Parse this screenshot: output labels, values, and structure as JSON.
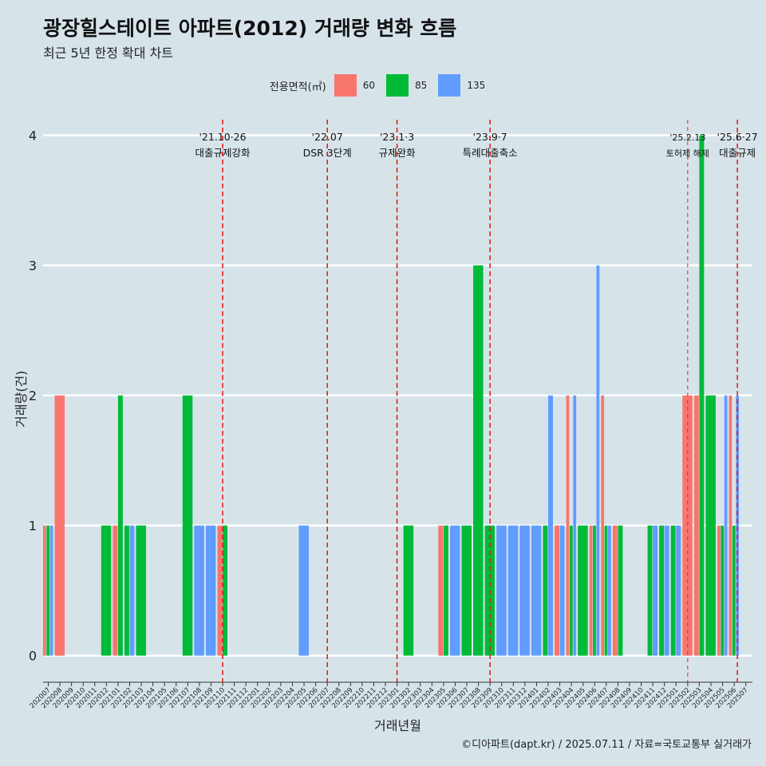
{
  "title": "광장힐스테이트 아파트(2012) 거래량 변화 흐름",
  "subtitle": "최근 5년 한정 확대 차트",
  "caption": "©디아파트(dapt.kr) / 2025.07.11 / 자료=국토교통부 실거래가",
  "legend": {
    "title": "전용면적(㎡)",
    "items": [
      {
        "label": "60",
        "color": "#F8766D"
      },
      {
        "label": "85",
        "color": "#00BA38"
      },
      {
        "label": "135",
        "color": "#619CFF"
      }
    ]
  },
  "chart_data": {
    "type": "bar",
    "xlabel": "거래년월",
    "ylabel": "거래량(건)",
    "ylim": [
      -0.18,
      4.12
    ],
    "yticks": [
      0,
      1,
      2,
      3,
      4
    ],
    "grid": "horizontal",
    "legend_position": "top",
    "x_range": [
      "202007",
      "202507"
    ],
    "categories": [
      "202007",
      "202008",
      "202009",
      "202010",
      "202011",
      "202012",
      "202101",
      "202102",
      "202103",
      "202104",
      "202105",
      "202106",
      "202107",
      "202108",
      "202109",
      "202110",
      "202111",
      "202112",
      "202201",
      "202202",
      "202203",
      "202204",
      "202205",
      "202206",
      "202207",
      "202208",
      "202209",
      "202210",
      "202211",
      "202212",
      "202301",
      "202302",
      "202303",
      "202304",
      "202305",
      "202306",
      "202307",
      "202308",
      "202309",
      "202310",
      "202311",
      "202312",
      "202401",
      "202402",
      "202403",
      "202404",
      "202405",
      "202406",
      "202407",
      "202408",
      "202409",
      "202410",
      "202411",
      "202412",
      "202501",
      "202502",
      "202503",
      "202504",
      "202505",
      "202506",
      "202507"
    ],
    "series": [
      {
        "name": "60",
        "color": "#F8766D",
        "points": [
          {
            "x": "202007",
            "y": 1
          },
          {
            "x": "202008",
            "y": 2
          },
          {
            "x": "202101",
            "y": 1
          },
          {
            "x": "202110",
            "y": 1
          },
          {
            "x": "202305",
            "y": 1
          },
          {
            "x": "202403",
            "y": 1
          },
          {
            "x": "202404",
            "y": 2
          },
          {
            "x": "202406",
            "y": 1
          },
          {
            "x": "202407",
            "y": 2
          },
          {
            "x": "202408",
            "y": 1
          },
          {
            "x": "202502",
            "y": 2
          },
          {
            "x": "202503",
            "y": 2
          },
          {
            "x": "202505",
            "y": 1
          },
          {
            "x": "202506",
            "y": 2
          }
        ]
      },
      {
        "name": "85",
        "color": "#00BA38",
        "points": [
          {
            "x": "202007",
            "y": 1
          },
          {
            "x": "202012",
            "y": 1
          },
          {
            "x": "202101",
            "y": 2
          },
          {
            "x": "202102",
            "y": 1
          },
          {
            "x": "202103",
            "y": 1
          },
          {
            "x": "202107",
            "y": 2
          },
          {
            "x": "202110",
            "y": 1
          },
          {
            "x": "202302",
            "y": 1
          },
          {
            "x": "202305",
            "y": 1
          },
          {
            "x": "202307",
            "y": 1
          },
          {
            "x": "202308",
            "y": 3
          },
          {
            "x": "202309",
            "y": 1
          },
          {
            "x": "202402",
            "y": 1
          },
          {
            "x": "202404",
            "y": 1
          },
          {
            "x": "202405",
            "y": 1
          },
          {
            "x": "202406",
            "y": 1
          },
          {
            "x": "202407",
            "y": 1
          },
          {
            "x": "202408",
            "y": 1
          },
          {
            "x": "202411",
            "y": 1
          },
          {
            "x": "202412",
            "y": 1
          },
          {
            "x": "202501",
            "y": 1
          },
          {
            "x": "202503",
            "y": 4
          },
          {
            "x": "202504",
            "y": 2
          },
          {
            "x": "202505",
            "y": 1
          },
          {
            "x": "202506",
            "y": 1
          }
        ]
      },
      {
        "name": "135",
        "color": "#619CFF",
        "points": [
          {
            "x": "202007",
            "y": 1
          },
          {
            "x": "202102",
            "y": 1
          },
          {
            "x": "202108",
            "y": 1
          },
          {
            "x": "202109",
            "y": 1
          },
          {
            "x": "202205",
            "y": 1
          },
          {
            "x": "202306",
            "y": 1
          },
          {
            "x": "202310",
            "y": 1
          },
          {
            "x": "202311",
            "y": 1
          },
          {
            "x": "202312",
            "y": 1
          },
          {
            "x": "202401",
            "y": 1
          },
          {
            "x": "202402",
            "y": 2
          },
          {
            "x": "202403",
            "y": 1
          },
          {
            "x": "202404",
            "y": 2
          },
          {
            "x": "202406",
            "y": 3
          },
          {
            "x": "202407",
            "y": 1
          },
          {
            "x": "202411",
            "y": 1
          },
          {
            "x": "202412",
            "y": 1
          },
          {
            "x": "202501",
            "y": 1
          },
          {
            "x": "202505",
            "y": 2
          },
          {
            "x": "202506",
            "y": 2
          }
        ]
      }
    ],
    "annotations": [
      {
        "x": "202110",
        "date": "'21.10·26",
        "text": "대출규제강화",
        "style": "dashed"
      },
      {
        "x": "202207",
        "date": "'22.07",
        "text": "DSR 3단계",
        "style": "dashed"
      },
      {
        "x": "202301",
        "date": "'23.1·3",
        "text": "규제완화",
        "style": "dashed"
      },
      {
        "x": "202309",
        "date": "'23.9·7",
        "text": "특례대출축소",
        "style": "dashed"
      },
      {
        "x": "202502",
        "date": "'25.2.13",
        "text": "토허제 해제",
        "style": "thin-dashed"
      },
      {
        "x": "202506",
        "date": "'25.6·27",
        "text": "대출규제",
        "style": "dashed"
      }
    ]
  }
}
